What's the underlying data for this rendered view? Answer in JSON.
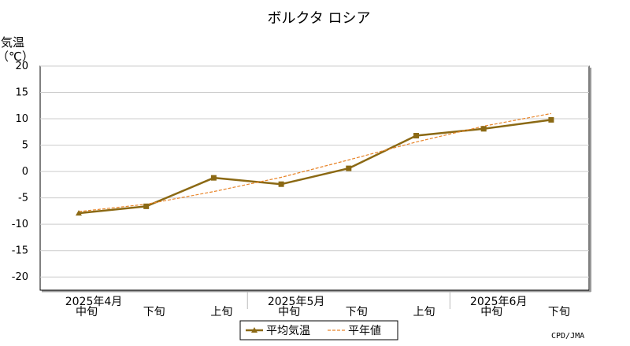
{
  "chart_data": {
    "type": "line",
    "title": "ボルクタ ロシア",
    "ylabel_line1": "気温",
    "ylabel_line2": "（℃）",
    "ylim": [
      -22.5,
      20
    ],
    "yticks": [
      20,
      15,
      10,
      5,
      0,
      -5,
      -10,
      -15,
      -20
    ],
    "grid": true,
    "periods": [
      "中旬",
      "下旬",
      "上旬",
      "中旬",
      "下旬",
      "上旬",
      "中旬",
      "下旬"
    ],
    "months": [
      {
        "label": "2025年4月",
        "index": 0
      },
      {
        "label": "2025年5月",
        "index": 3
      },
      {
        "label": "2025年6月",
        "index": 6
      }
    ],
    "series": [
      {
        "name": "平均気温",
        "values": [
          -7.9,
          -6.6,
          -1.2,
          -2.4,
          0.6,
          6.8,
          8.1,
          9.8
        ],
        "color": "#8B6914",
        "style": "solid"
      },
      {
        "name": "平年値",
        "values": [
          -7.6,
          -6.2,
          -3.8,
          -1.1,
          2.2,
          5.6,
          8.6,
          11.0
        ],
        "color": "#E8852A",
        "style": "dashed"
      }
    ],
    "legend_position": "bottom-center",
    "source": "CPD/JMA"
  }
}
